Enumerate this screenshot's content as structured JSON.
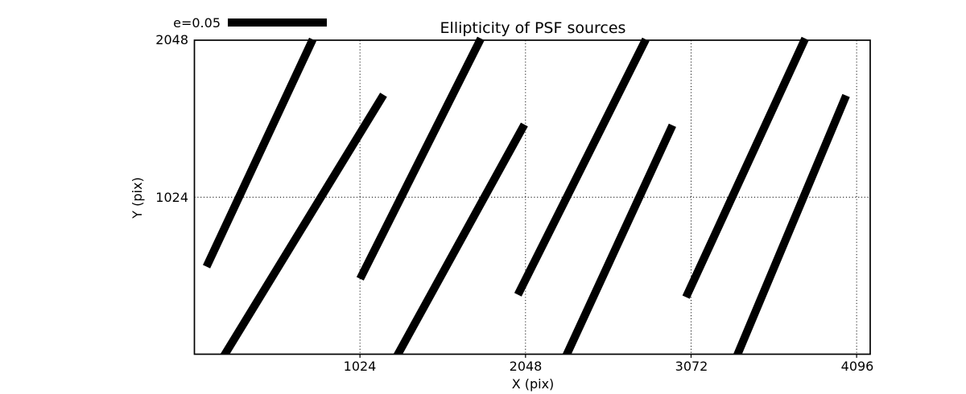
{
  "figure": {
    "title": "Ellipticity of PSF sources",
    "background_color": "#ffffff",
    "ink_color": "#000000"
  },
  "legend": {
    "label": "e=0.05",
    "position": "top-left-outside-axes"
  },
  "axes": {
    "xlabel": "X (pix)",
    "ylabel": "Y (pix)",
    "xtick_labels": [
      "1024",
      "2048",
      "3072",
      "4096"
    ],
    "ytick_labels": [
      "2048",
      "1024"
    ]
  },
  "chart_data": {
    "type": "line",
    "variant": "ellipticity-whisker-segments",
    "title": "Ellipticity of PSF sources",
    "xlabel": "X (pix)",
    "ylabel": "Y (pix)",
    "xlim": [
      0,
      4180
    ],
    "ylim": [
      0,
      2048
    ],
    "xticks": [
      1024,
      2048,
      3072,
      4096
    ],
    "yticks": [
      2048,
      1024
    ],
    "grid": "dotted-black-at-ticks",
    "legend": {
      "label": "e=0.05",
      "position": "top-left-outside"
    },
    "segments": [
      {
        "x1": 75,
        "y1": 571,
        "x2": 732,
        "y2": 2053
      },
      {
        "x1": 189,
        "y1": 0,
        "x2": 1170,
        "y2": 1692
      },
      {
        "x1": 1025,
        "y1": 492,
        "x2": 1772,
        "y2": 2059
      },
      {
        "x1": 1259,
        "y1": 0,
        "x2": 2041,
        "y2": 1498
      },
      {
        "x1": 2001,
        "y1": 388,
        "x2": 2792,
        "y2": 2053
      },
      {
        "x1": 2304,
        "y1": 0,
        "x2": 2957,
        "y2": 1493
      },
      {
        "x1": 3041,
        "y1": 372,
        "x2": 3778,
        "y2": 2059
      },
      {
        "x1": 3360,
        "y1": 0,
        "x2": 4031,
        "y2": 1687
      }
    ]
  }
}
